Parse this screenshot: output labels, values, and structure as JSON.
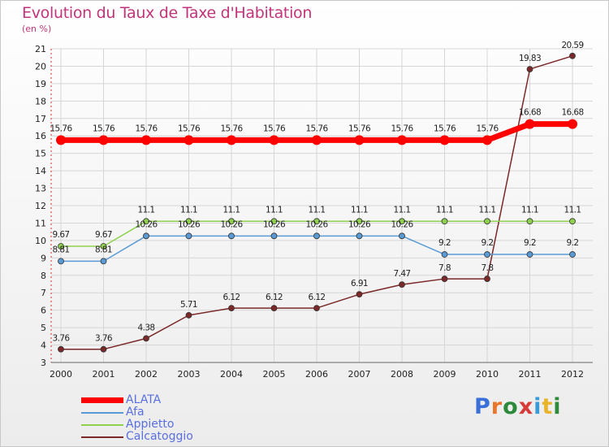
{
  "title": "Evolution du Taux de Taxe d'Habitation",
  "subtitle": "(en %)",
  "brand": "Proxiti",
  "chart_data": {
    "type": "line",
    "categories": [
      "2000",
      "2001",
      "2002",
      "2003",
      "2004",
      "2005",
      "2006",
      "2007",
      "2008",
      "2009",
      "2010",
      "2011",
      "2012"
    ],
    "ylim": [
      3,
      21
    ],
    "yticks": [
      3,
      4,
      5,
      6,
      7,
      8,
      9,
      10,
      11,
      12,
      13,
      14,
      15,
      16,
      17,
      18,
      19,
      20,
      21
    ],
    "grid": true,
    "legend_position": "bottom-left",
    "series": [
      {
        "name": "ALATA",
        "color": "#ff0000",
        "emphasis": true,
        "values": [
          15.76,
          15.76,
          15.76,
          15.76,
          15.76,
          15.76,
          15.76,
          15.76,
          15.76,
          15.76,
          15.76,
          16.68,
          16.68
        ],
        "labels": [
          "15.76",
          "15.76",
          "15.76",
          "15.76",
          "15.76",
          "15.76",
          "15.76",
          "15.76",
          "15.76",
          "15.76",
          "15.76",
          "16.68",
          "16.68"
        ]
      },
      {
        "name": "Afa",
        "color": "#5b9bd5",
        "values": [
          8.81,
          8.81,
          10.26,
          10.26,
          10.26,
          10.26,
          10.26,
          10.26,
          10.26,
          9.2,
          9.2,
          9.2,
          9.2
        ],
        "labels": [
          "8.81",
          "8.81",
          "10.26",
          "10.26",
          "10.26",
          "10.26",
          "10.26",
          "10.26",
          "10.26",
          "9.2",
          "9.2",
          "9.2",
          "9.2"
        ]
      },
      {
        "name": "Appietto",
        "color": "#8fd14f",
        "values": [
          9.67,
          9.67,
          11.1,
          11.1,
          11.1,
          11.1,
          11.1,
          11.1,
          11.1,
          11.1,
          11.1,
          11.1,
          11.1
        ],
        "labels": [
          "9.67",
          "9.67",
          "11.1",
          "11.1",
          "11.1",
          "11.1",
          "11.1",
          "11.1",
          "11.1",
          "11.1",
          "11.1",
          "11.1",
          "11.1"
        ]
      },
      {
        "name": "Calcatoggio",
        "color": "#7a2828",
        "values": [
          3.76,
          3.76,
          4.38,
          5.71,
          6.12,
          6.12,
          6.12,
          6.91,
          7.47,
          7.8,
          7.8,
          19.83,
          20.59
        ],
        "labels": [
          "3.76",
          "3.76",
          "4.38",
          "5.71",
          "6.12",
          "6.12",
          "6.12",
          "6.91",
          "7.47",
          "7.8",
          "7.8",
          "19.83",
          "20.59"
        ]
      }
    ]
  }
}
